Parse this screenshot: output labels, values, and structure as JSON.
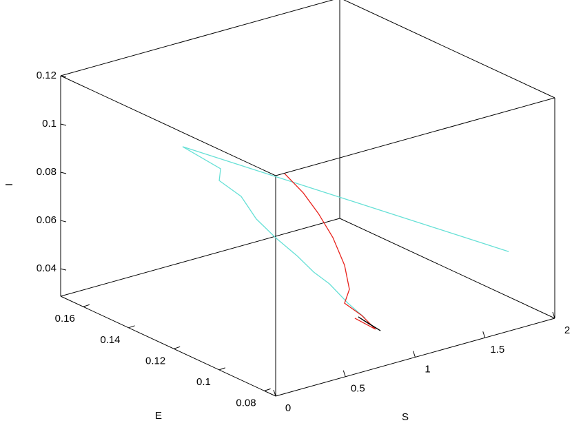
{
  "chart_data": {
    "type": "line3d",
    "xlabel": "S",
    "ylabel": "E",
    "zlabel": "I",
    "xlim": [
      0,
      2
    ],
    "xticks": [
      0,
      0.5,
      1,
      1.5,
      2
    ],
    "ylim": [
      0.075,
      0.17
    ],
    "yticks": [
      0.08,
      0.1,
      0.12,
      0.14,
      0.16
    ],
    "zlim": [
      0.0286,
      0.12
    ],
    "zticks": [
      0.04,
      0.06,
      0.08,
      0.1,
      0.12
    ],
    "series": [
      {
        "color": "#66e0d6",
        "x": [
          1.8,
          0.3,
          0.35,
          0.4,
          0.45,
          0.5,
          0.55,
          0.6,
          0.65,
          0.7,
          0.75,
          0.8
        ],
        "y": [
          0.083,
          0.1346,
          0.1209,
          0.1246,
          0.118,
          0.1144,
          0.1089,
          0.1023,
          0.0983,
          0.0944,
          0.0893,
          0.0847
        ],
        "z": [
          0.056,
          0.1012,
          0.0972,
          0.0899,
          0.0854,
          0.0768,
          0.0706,
          0.065,
          0.0594,
          0.0554,
          0.0488,
          0.0437
        ]
      },
      {
        "color": "#e8221c",
        "x": [
          0.5,
          0.55,
          0.6,
          0.65,
          0.7,
          0.72,
          0.7,
          0.8,
          0.85,
          0.78
        ],
        "y": [
          0.1019,
          0.0967,
          0.0931,
          0.0898,
          0.0877,
          0.0868,
          0.0877,
          0.0863,
          0.0833,
          0.0881
        ],
        "z": [
          0.1011,
          0.0945,
          0.0867,
          0.0774,
          0.066,
          0.0561,
          0.0503,
          0.0442,
          0.039,
          0.0426
        ]
      },
      {
        "color": "#000000",
        "x": [
          0.78,
          0.86,
          0.82,
          0.78
        ],
        "y": [
          0.0866,
          0.0817,
          0.0844,
          0.0866
        ],
        "z": [
          0.0438,
          0.0389,
          0.0413,
          0.0438
        ]
      }
    ]
  }
}
